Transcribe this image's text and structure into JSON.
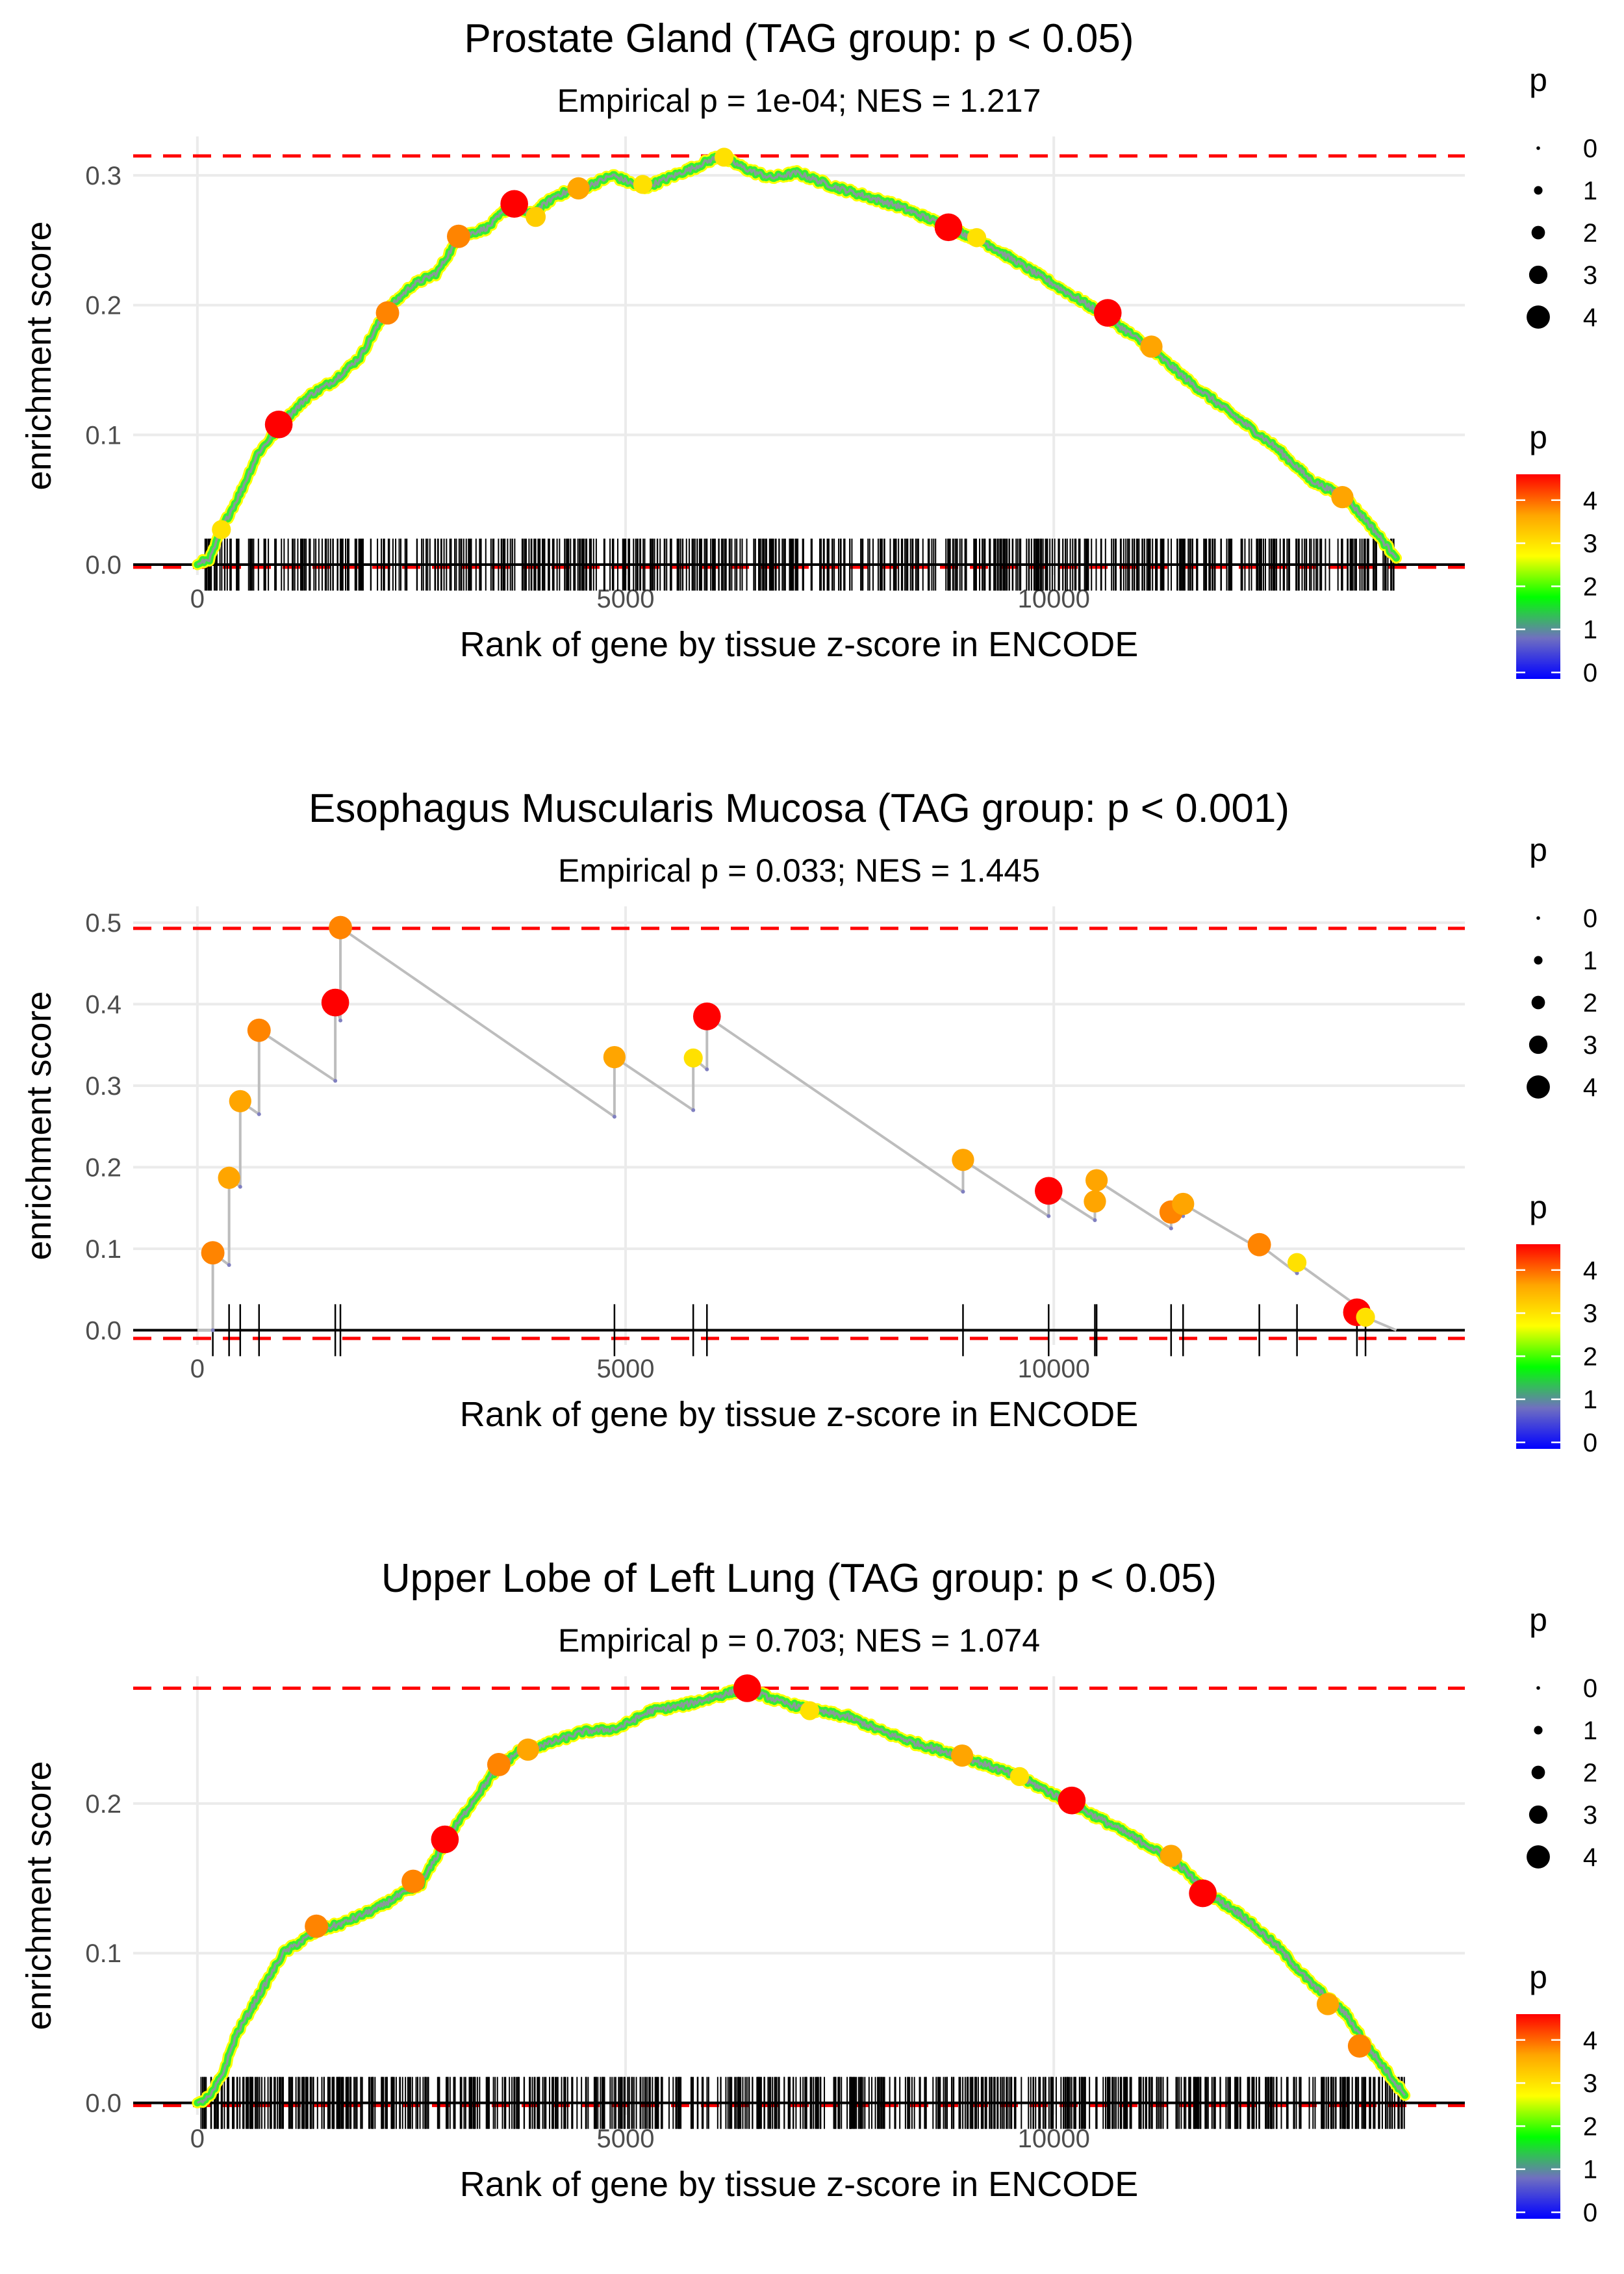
{
  "chart_data": [
    {
      "type": "line",
      "title": "Prostate Gland (TAG group: p < 0.05)",
      "subtitle": "Empirical p = 1e-04; NES = 1.217",
      "xlabel": "Rank of gene by tissue z-score in ENCODE",
      "ylabel": "enrichment score",
      "xlim": [
        -750,
        14800
      ],
      "ylim": [
        -0.008,
        0.33
      ],
      "x_ticks": [
        0,
        5000,
        10000
      ],
      "x_tick_labels": [
        "0",
        "5000",
        "10000"
      ],
      "y_ticks": [
        0.0,
        0.1,
        0.2,
        0.3
      ],
      "y_tick_labels": [
        "0.0",
        "0.1",
        "0.2",
        "0.3"
      ],
      "max_es": 0.315,
      "min_es": 0.0,
      "mode": "dense",
      "n_hits": 680,
      "hit_range": [
        30,
        14000
      ],
      "curve_points": [
        [
          0,
          0
        ],
        [
          150,
          0.005
        ],
        [
          300,
          0.03
        ],
        [
          500,
          0.055
        ],
        [
          700,
          0.085
        ],
        [
          1000,
          0.11
        ],
        [
          1300,
          0.13
        ],
        [
          1600,
          0.142
        ],
        [
          1900,
          0.16
        ],
        [
          2200,
          0.195
        ],
        [
          2500,
          0.215
        ],
        [
          2800,
          0.225
        ],
        [
          3050,
          0.252
        ],
        [
          3400,
          0.26
        ],
        [
          3650,
          0.277
        ],
        [
          3900,
          0.27
        ],
        [
          4200,
          0.285
        ],
        [
          4500,
          0.29
        ],
        [
          4850,
          0.3
        ],
        [
          5200,
          0.29
        ],
        [
          5500,
          0.298
        ],
        [
          5800,
          0.306
        ],
        [
          6100,
          0.315
        ],
        [
          6400,
          0.305
        ],
        [
          6700,
          0.298
        ],
        [
          7000,
          0.302
        ],
        [
          7400,
          0.292
        ],
        [
          7800,
          0.284
        ],
        [
          8200,
          0.276
        ],
        [
          8700,
          0.262
        ],
        [
          9200,
          0.248
        ],
        [
          9700,
          0.228
        ],
        [
          10100,
          0.212
        ],
        [
          10600,
          0.192
        ],
        [
          11100,
          0.168
        ],
        [
          11600,
          0.14
        ],
        [
          12100,
          0.115
        ],
        [
          12600,
          0.09
        ],
        [
          13000,
          0.065
        ],
        [
          13400,
          0.052
        ],
        [
          13700,
          0.03
        ],
        [
          14000,
          0.005
        ]
      ],
      "highlight_points": [
        [
          3700,
          0.278,
          4.6
        ],
        [
          950,
          0.108,
          4.6
        ],
        [
          8770,
          0.26,
          4.6
        ],
        [
          10630,
          0.194,
          4.6
        ],
        [
          3050,
          0.253,
          3.8
        ],
        [
          2220,
          0.194,
          3.8
        ],
        [
          4450,
          0.29,
          3.6
        ],
        [
          11140,
          0.168,
          3.6
        ],
        [
          13370,
          0.052,
          3.6
        ],
        [
          3950,
          0.268,
          3.2
        ],
        [
          280,
          0.027,
          3.0
        ],
        [
          5200,
          0.293,
          3.0
        ],
        [
          6150,
          0.314,
          3.0
        ],
        [
          9100,
          0.252,
          3.0
        ]
      ],
      "legend_size": {
        "title": "p",
        "labels": [
          "0",
          "1",
          "2",
          "3",
          "4"
        ]
      },
      "legend_color": {
        "title": "p",
        "labels": [
          "4",
          "3",
          "2",
          "1",
          "0"
        ],
        "stops": [
          "#0000ff",
          "#7070c0",
          "#00ff00",
          "#ffff00",
          "#ffa500",
          "#ff0000"
        ]
      }
    },
    {
      "type": "line",
      "title": "Esophagus Muscularis Mucosa (TAG group: p < 0.001)",
      "subtitle": "Empirical p = 0.033; NES = 1.445",
      "xlabel": "Rank of gene by tissue z-score in ENCODE",
      "ylabel": "enrichment score",
      "xlim": [
        -750,
        14800
      ],
      "ylim": [
        -0.018,
        0.52
      ],
      "x_ticks": [
        0,
        5000,
        10000
      ],
      "x_tick_labels": [
        "0",
        "5000",
        "10000"
      ],
      "y_ticks": [
        0.0,
        0.1,
        0.2,
        0.3,
        0.4,
        0.5
      ],
      "y_tick_labels": [
        "0.0",
        "0.1",
        "0.2",
        "0.3",
        "0.4",
        "0.5"
      ],
      "max_es": 0.493,
      "min_es": -0.01,
      "mode": "sparse",
      "hits": [
        [
          180,
          0.095,
          0.0,
          3.8
        ],
        [
          370,
          0.187,
          0.08,
          3.6
        ],
        [
          500,
          0.281,
          0.176,
          3.6
        ],
        [
          720,
          0.368,
          0.265,
          3.8
        ],
        [
          1610,
          0.402,
          0.306,
          4.6
        ],
        [
          1670,
          0.494,
          0.38,
          3.8
        ],
        [
          4870,
          0.335,
          0.262,
          3.6
        ],
        [
          5790,
          0.334,
          0.27,
          3.0
        ],
        [
          5950,
          0.385,
          0.32,
          4.6
        ],
        [
          8940,
          0.209,
          0.17,
          3.6
        ],
        [
          9940,
          0.171,
          0.14,
          4.6
        ],
        [
          10480,
          0.158,
          0.135,
          3.6
        ],
        [
          10500,
          0.184,
          0.155,
          3.6
        ],
        [
          11370,
          0.145,
          0.125,
          3.8
        ],
        [
          11510,
          0.155,
          0.14,
          3.6
        ],
        [
          12400,
          0.105,
          0.1,
          3.8
        ],
        [
          12840,
          0.083,
          0.07,
          3.0
        ],
        [
          13540,
          0.022,
          0.03,
          4.6
        ],
        [
          13640,
          0.016,
          0.01,
          3.0
        ]
      ],
      "end_point": [
        14000,
        0.0
      ],
      "legend_size": {
        "title": "p",
        "labels": [
          "0",
          "1",
          "2",
          "3",
          "4"
        ]
      },
      "legend_color": {
        "title": "p",
        "labels": [
          "4",
          "3",
          "2",
          "1",
          "0"
        ],
        "stops": [
          "#0000ff",
          "#7070c0",
          "#00ff00",
          "#ffff00",
          "#ffa500",
          "#ff0000"
        ]
      }
    },
    {
      "type": "line",
      "title": "Upper Lobe of Left Lung (TAG group: p < 0.05)",
      "subtitle": "Empirical p = 0.703; NES = 1.074",
      "xlabel": "Rank of gene by tissue z-score in ENCODE",
      "ylabel": "enrichment score",
      "xlim": [
        -750,
        14800
      ],
      "ylim": [
        -0.008,
        0.285
      ],
      "x_ticks": [
        0,
        5000,
        10000
      ],
      "x_tick_labels": [
        "0",
        "5000",
        "10000"
      ],
      "y_ticks": [
        0.0,
        0.1,
        0.2
      ],
      "y_tick_labels": [
        "0.0",
        "0.1",
        "0.2"
      ],
      "max_es": 0.277,
      "min_es": 0.0,
      "mode": "dense",
      "n_hits": 720,
      "hit_range": [
        40,
        14100
      ],
      "curve_points": [
        [
          0,
          0
        ],
        [
          150,
          0.004
        ],
        [
          300,
          0.02
        ],
        [
          450,
          0.045
        ],
        [
          700,
          0.07
        ],
        [
          1000,
          0.1
        ],
        [
          1400,
          0.115
        ],
        [
          1700,
          0.12
        ],
        [
          2100,
          0.13
        ],
        [
          2400,
          0.14
        ],
        [
          2600,
          0.145
        ],
        [
          2900,
          0.175
        ],
        [
          3200,
          0.2
        ],
        [
          3450,
          0.22
        ],
        [
          3750,
          0.235
        ],
        [
          4100,
          0.24
        ],
        [
          4500,
          0.248
        ],
        [
          4900,
          0.25
        ],
        [
          5300,
          0.262
        ],
        [
          5700,
          0.266
        ],
        [
          6100,
          0.272
        ],
        [
          6400,
          0.277
        ],
        [
          6800,
          0.268
        ],
        [
          7200,
          0.262
        ],
        [
          7600,
          0.258
        ],
        [
          8000,
          0.248
        ],
        [
          8400,
          0.24
        ],
        [
          8900,
          0.232
        ],
        [
          9400,
          0.222
        ],
        [
          9800,
          0.212
        ],
        [
          10200,
          0.2
        ],
        [
          10600,
          0.188
        ],
        [
          11100,
          0.172
        ],
        [
          11500,
          0.157
        ],
        [
          11800,
          0.14
        ],
        [
          12200,
          0.125
        ],
        [
          12600,
          0.105
        ],
        [
          13000,
          0.08
        ],
        [
          13400,
          0.06
        ],
        [
          13700,
          0.035
        ],
        [
          14100,
          0.005
        ]
      ],
      "highlight_points": [
        [
          2890,
          0.176,
          4.6
        ],
        [
          6420,
          0.277,
          4.6
        ],
        [
          10210,
          0.202,
          4.6
        ],
        [
          11740,
          0.14,
          4.6
        ],
        [
          1390,
          0.118,
          3.8
        ],
        [
          2520,
          0.148,
          3.8
        ],
        [
          3520,
          0.226,
          3.8
        ],
        [
          3860,
          0.236,
          3.6
        ],
        [
          11370,
          0.165,
          3.6
        ],
        [
          13200,
          0.066,
          3.6
        ],
        [
          13570,
          0.038,
          3.8
        ],
        [
          8930,
          0.232,
          3.6
        ],
        [
          7150,
          0.262,
          3.0
        ],
        [
          9600,
          0.218,
          3.0
        ]
      ],
      "legend_size": {
        "title": "p",
        "labels": [
          "0",
          "1",
          "2",
          "3",
          "4"
        ]
      },
      "legend_color": {
        "title": "p",
        "labels": [
          "4",
          "3",
          "2",
          "1",
          "0"
        ],
        "stops": [
          "#0000ff",
          "#7070c0",
          "#00ff00",
          "#ffff00",
          "#ffa500",
          "#ff0000"
        ]
      }
    }
  ]
}
